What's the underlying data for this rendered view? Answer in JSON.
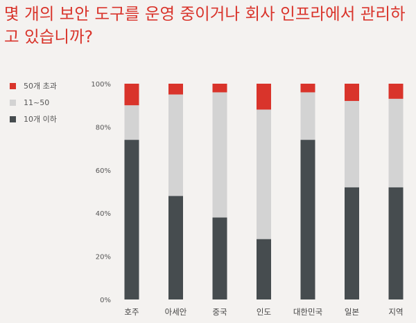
{
  "title": "몇 개의 보안 도구를 운영 중이거나 회사 인프라에서 관리하고 있습니까?",
  "legend": [
    {
      "label": "50개 초과",
      "color": "#d9342b"
    },
    {
      "label": "11~50",
      "color": "#d3d3d3"
    },
    {
      "label": "10개 이하",
      "color": "#464c4f"
    }
  ],
  "chart_data": {
    "type": "bar",
    "stacked": true,
    "title": "몇 개의 보안 도구를 운영 중이거나 회사 인프라에서 관리하고 있습니까?",
    "categories": [
      "호주",
      "아세안",
      "중국",
      "인도",
      "대한민국",
      "일본",
      "지역"
    ],
    "series": [
      {
        "name": "10개 이하",
        "color": "#464c4f",
        "values": [
          74,
          48,
          38,
          28,
          74,
          52,
          52
        ]
      },
      {
        "name": "11~50",
        "color": "#d3d3d3",
        "values": [
          16,
          47,
          58,
          60,
          22,
          40,
          41
        ]
      },
      {
        "name": "50개 초과",
        "color": "#d9342b",
        "values": [
          10,
          5,
          4,
          12,
          4,
          8,
          7
        ]
      }
    ],
    "ylim": [
      0,
      100
    ],
    "yticks": [
      "0%",
      "20%",
      "40%",
      "60%",
      "80%",
      "100%"
    ],
    "grid": false,
    "legend_position": "top-left"
  }
}
